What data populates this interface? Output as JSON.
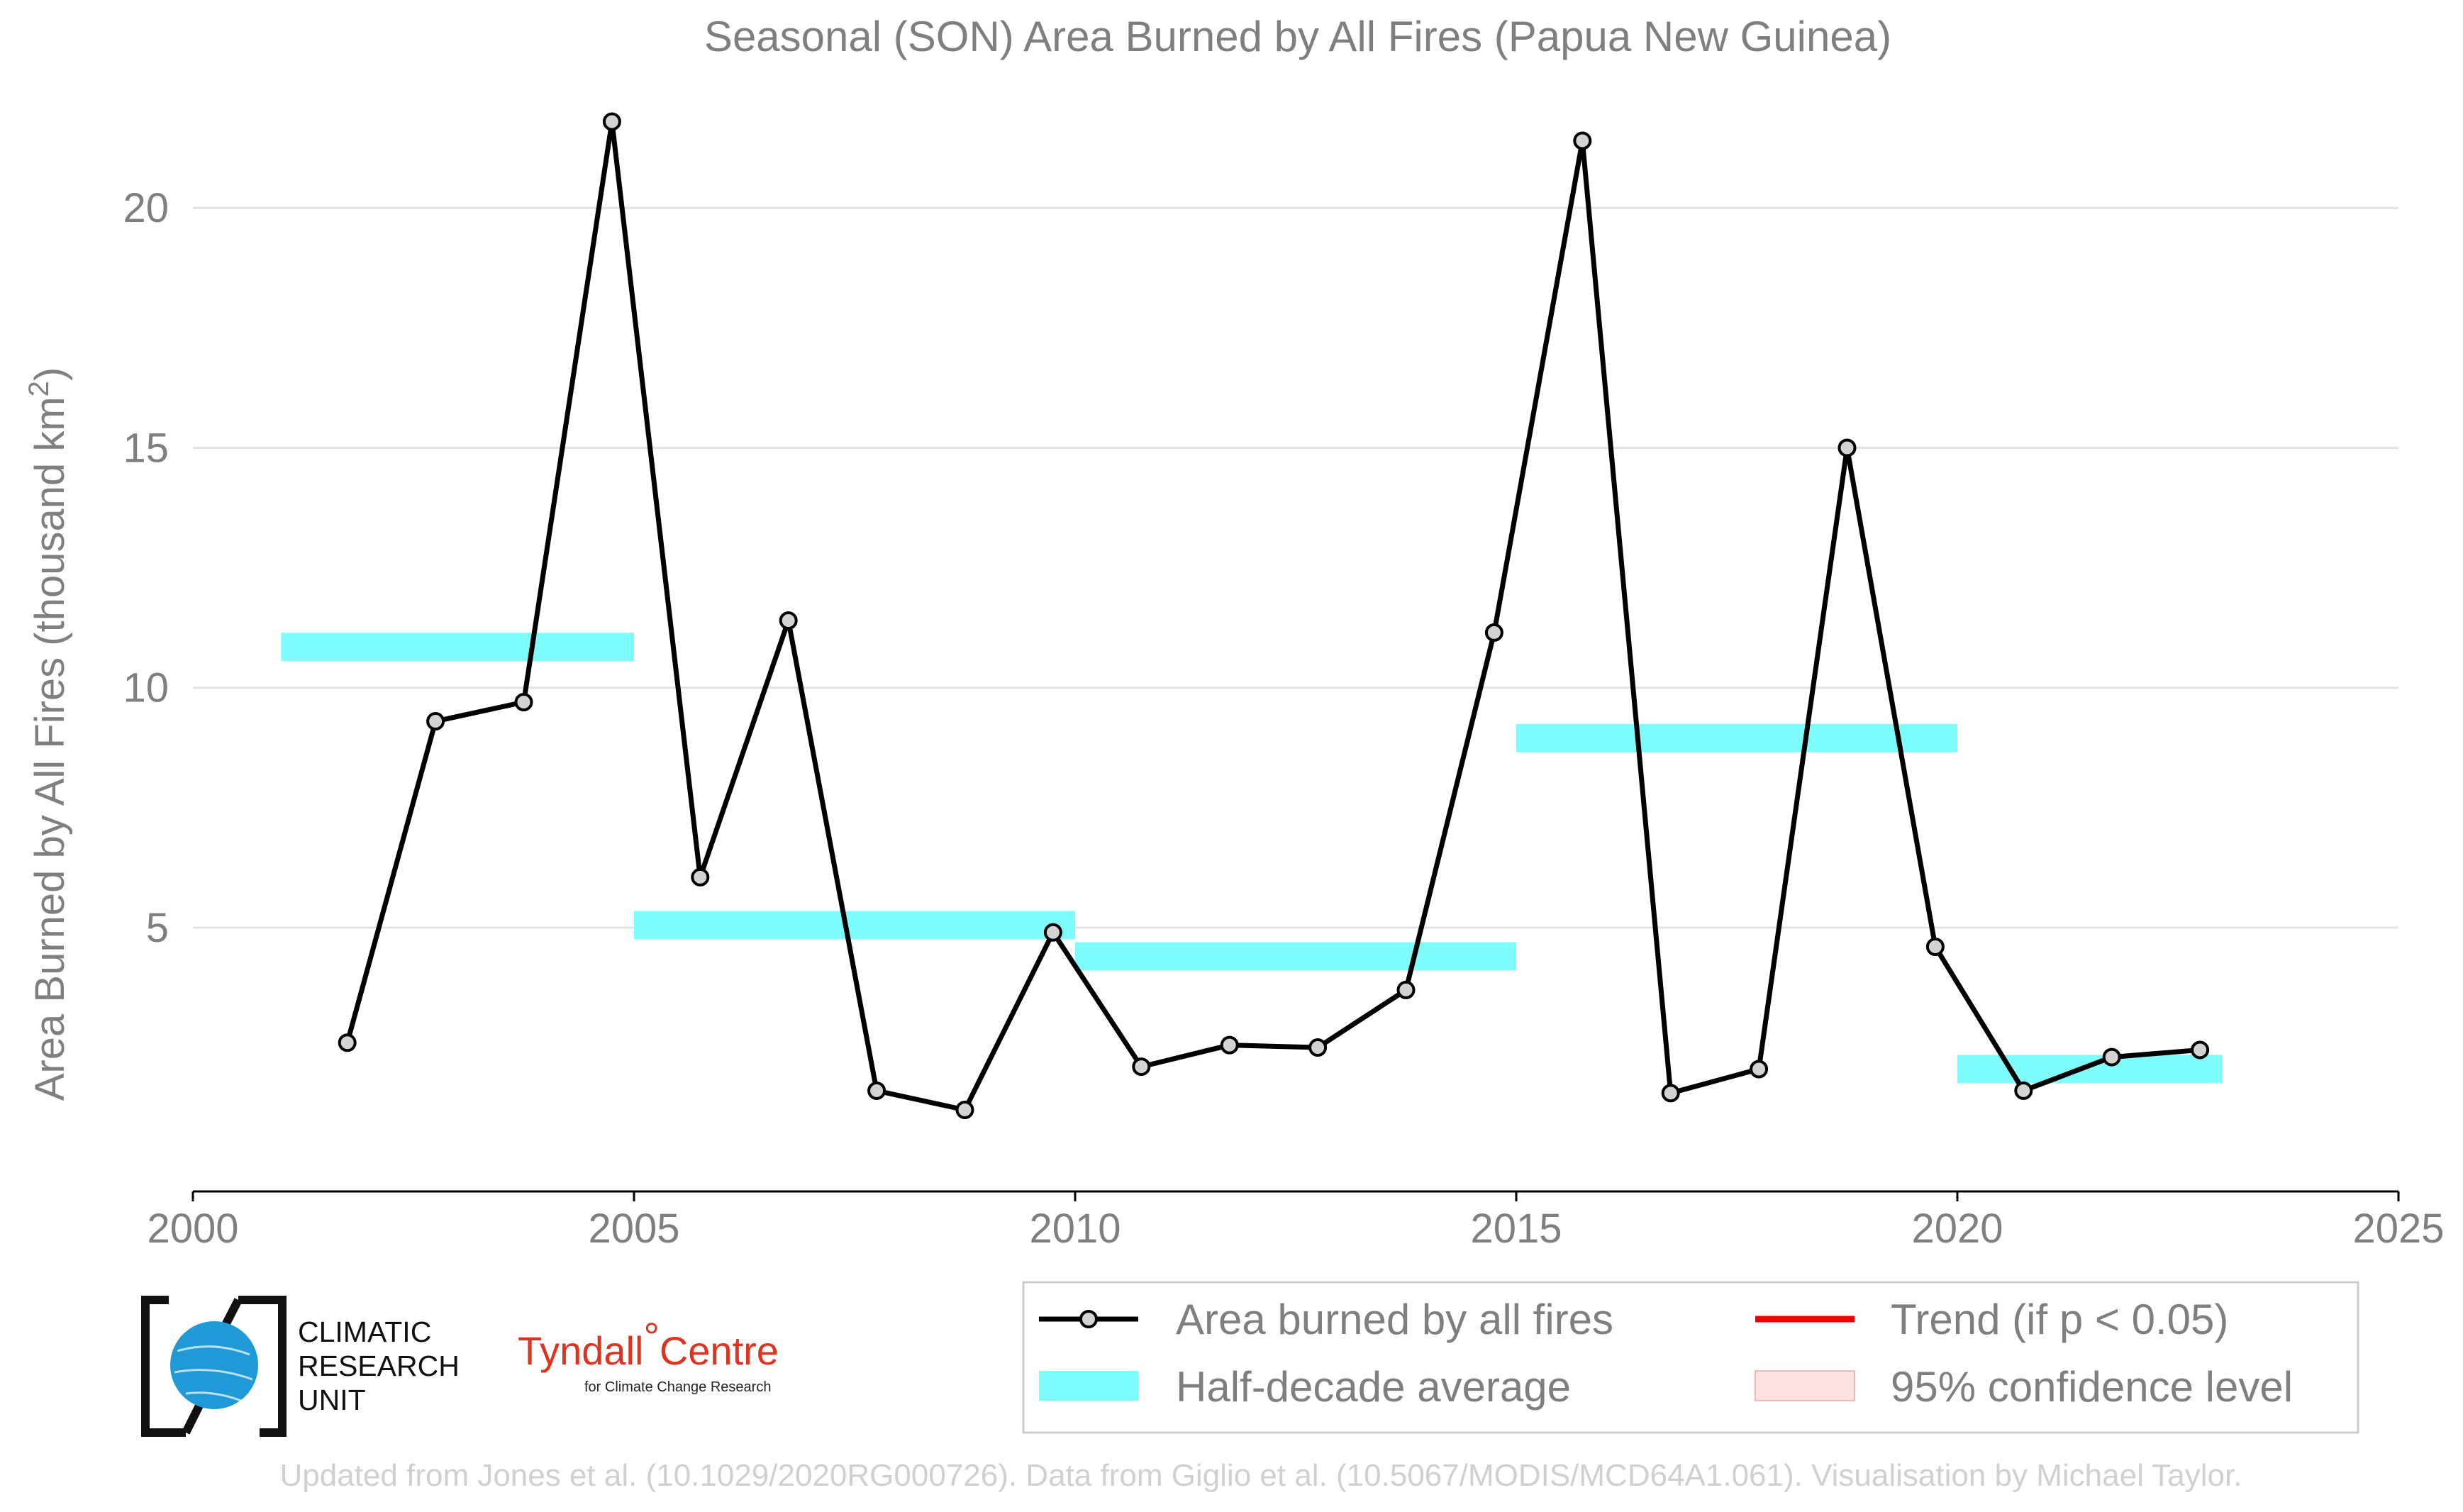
{
  "chart_data": {
    "type": "line",
    "title": "Seasonal (SON) Area Burned by All Fires (Papua New Guinea)",
    "ylabel": "Area Burned by All Fires (thousand km",
    "ylabel_sup": "2",
    "ylabel_end": ")",
    "xlim": [
      2000,
      2025
    ],
    "ylim": [
      -0.5,
      23.3
    ],
    "xticks": [
      2000,
      2005,
      2010,
      2015,
      2020,
      2025
    ],
    "yticks": [
      5,
      10,
      15,
      20
    ],
    "grid": "horizontal",
    "series": [
      {
        "name": "Area burned by all fires",
        "color": "#000000",
        "marker_fill": "#d3d3d3",
        "x": [
          2001.75,
          2002.75,
          2003.75,
          2004.75,
          2005.75,
          2006.75,
          2007.75,
          2008.75,
          2009.75,
          2010.75,
          2011.75,
          2012.75,
          2013.75,
          2014.75,
          2015.75,
          2016.75,
          2017.75,
          2018.75,
          2019.75,
          2020.75,
          2021.75,
          2022.75
        ],
        "y": [
          2.6,
          9.3,
          9.7,
          21.8,
          6.05,
          11.4,
          1.6,
          1.2,
          4.9,
          2.1,
          2.55,
          2.5,
          3.7,
          11.15,
          21.4,
          1.55,
          2.05,
          15.0,
          4.6,
          1.6,
          2.3,
          2.45
        ]
      }
    ],
    "half_decade_averages": [
      {
        "x0": 2001,
        "x1": 2005,
        "y": 10.85
      },
      {
        "x0": 2005,
        "x1": 2010,
        "y": 5.05
      },
      {
        "x0": 2010,
        "x1": 2015,
        "y": 4.4
      },
      {
        "x0": 2015,
        "x1": 2020,
        "y": 8.95
      },
      {
        "x0": 2020,
        "x1": 2023,
        "y": 2.05
      }
    ],
    "half_decade_color": "#7ffcfc",
    "trend_color": "#ee0000",
    "ci_color": "#fde0e0",
    "legend": {
      "placement": "bottom-right",
      "entries": {
        "line": "Area burned by all fires",
        "trend": "Trend (if p < 0.05)",
        "half_decade": "Half-decade average",
        "ci": "95% confidence level"
      }
    }
  },
  "logos": {
    "cru_line1": "CLIMATIC",
    "cru_line2": "RESEARCH",
    "cru_line3": "UNIT",
    "tyndall_name": "Tyndall",
    "tyndall_degree": "°",
    "tyndall_centre": "Centre",
    "tyndall_sub": "for Climate Change Research"
  },
  "credit": "Updated from Jones et al. (10.1029/2020RG000726). Data from Giglio et al. (10.5067/MODIS/MCD64A1.061). Visualisation by Michael Taylor."
}
